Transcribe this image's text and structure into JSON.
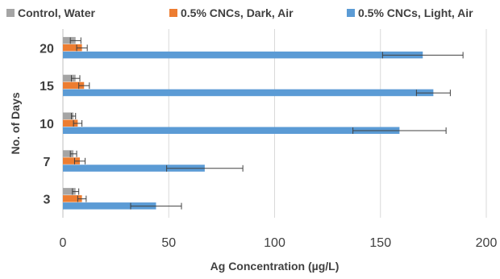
{
  "chart_data": {
    "type": "bar",
    "orientation": "horizontal",
    "title": "",
    "xlabel": "Ag Concentration (µg/L)",
    "ylabel": "No. of Days",
    "categories": [
      "3",
      "7",
      "10",
      "15",
      "20"
    ],
    "series": [
      {
        "name": "Control, Water",
        "color": "#a5a5a5",
        "values": [
          6,
          5,
          5,
          6,
          6
        ],
        "errors": [
          1.5,
          1.5,
          1,
          2,
          2.5
        ]
      },
      {
        "name": "0.5% CNCs, Dark, Air",
        "color": "#ed7d31",
        "values": [
          9,
          8,
          7,
          10,
          9
        ],
        "errors": [
          2,
          2.5,
          2,
          2.5,
          2.5
        ]
      },
      {
        "name": "0.5% CNCs, Light, Air",
        "color": "#5b9bd5",
        "values": [
          44,
          67,
          159,
          175,
          170
        ],
        "errors": [
          12,
          18,
          22,
          8,
          19
        ]
      }
    ],
    "xlim": [
      0,
      200
    ],
    "xticks": [
      0,
      50,
      100,
      150,
      200
    ],
    "grid": "vertical",
    "legend_position": "top"
  }
}
